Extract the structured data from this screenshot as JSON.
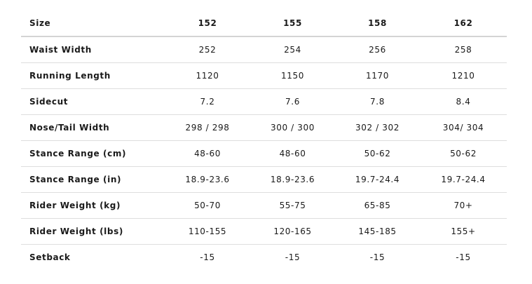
{
  "table": {
    "header": {
      "label": "Size",
      "values": [
        "152",
        "155",
        "158",
        "162"
      ]
    },
    "rows": [
      {
        "label": "Waist Width",
        "values": [
          "252",
          "254",
          "256",
          "258"
        ]
      },
      {
        "label": "Running Length",
        "values": [
          "1120",
          "1150",
          "1170",
          "1210"
        ]
      },
      {
        "label": "Sidecut",
        "values": [
          "7.2",
          "7.6",
          "7.8",
          "8.4"
        ]
      },
      {
        "label": "Nose/Tail Width",
        "values": [
          "298 / 298",
          "300 / 300",
          "302 / 302",
          "304/ 304"
        ]
      },
      {
        "label": "Stance Range (cm)",
        "values": [
          "48-60",
          "48-60",
          "50-62",
          "50-62"
        ]
      },
      {
        "label": "Stance Range (in)",
        "values": [
          "18.9-23.6",
          "18.9-23.6",
          "19.7-24.4",
          "19.7-24.4"
        ]
      },
      {
        "label": "Rider Weight (kg)",
        "values": [
          "50-70",
          "55-75",
          "65-85",
          "70+"
        ]
      },
      {
        "label": "Rider Weight (lbs)",
        "values": [
          "110-155",
          "120-165",
          "145-185",
          "155+"
        ]
      },
      {
        "label": "Setback",
        "values": [
          "-15",
          "-15",
          "-15",
          "-15"
        ]
      }
    ]
  }
}
